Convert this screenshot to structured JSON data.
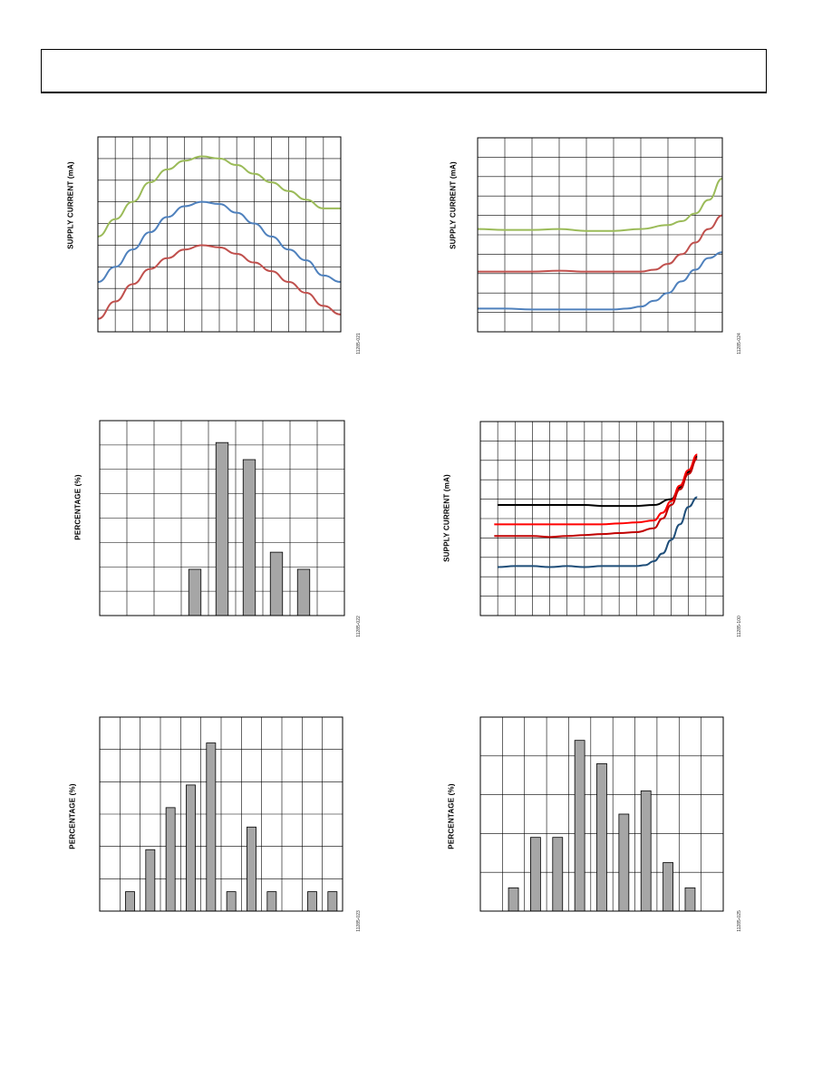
{
  "page": {
    "header_text": ""
  },
  "chart_data": [
    {
      "id": "c1",
      "type": "line",
      "ylabel": "SUPPLY CURRENT (mA)",
      "figure_id": "11285-021",
      "grid": true,
      "xlim": [
        0,
        14
      ],
      "ylim": [
        0,
        9
      ],
      "x_divisions": 14,
      "y_divisions": 9,
      "series": [
        {
          "color": "#9bbb59",
          "x": [
            0,
            1,
            2,
            3,
            4,
            5,
            6,
            7,
            8,
            9,
            10,
            11,
            12,
            13,
            14
          ],
          "y": [
            4.4,
            5.2,
            6.0,
            6.9,
            7.5,
            7.9,
            8.1,
            8.0,
            7.7,
            7.3,
            6.9,
            6.5,
            6.1,
            5.7,
            5.7
          ]
        },
        {
          "color": "#4f81bd",
          "x": [
            0,
            1,
            2,
            3,
            4,
            5,
            6,
            7,
            8,
            9,
            10,
            11,
            12,
            13,
            14
          ],
          "y": [
            2.3,
            3.0,
            3.8,
            4.6,
            5.3,
            5.8,
            6.0,
            5.9,
            5.5,
            5.0,
            4.4,
            3.8,
            3.3,
            2.6,
            2.3
          ]
        },
        {
          "color": "#c0504d",
          "x": [
            0,
            1,
            2,
            3,
            4,
            5,
            6,
            7,
            8,
            9,
            10,
            11,
            12,
            13,
            14
          ],
          "y": [
            0.6,
            1.4,
            2.2,
            2.9,
            3.4,
            3.8,
            4.0,
            3.9,
            3.6,
            3.2,
            2.8,
            2.3,
            1.8,
            1.2,
            0.8
          ]
        }
      ]
    },
    {
      "id": "c2",
      "type": "line",
      "ylabel": "SUPPLY CURRENT (mA)",
      "figure_id": "11285-024",
      "grid": true,
      "xlim": [
        0,
        9
      ],
      "ylim": [
        0,
        10
      ],
      "x_divisions": 9,
      "y_divisions": 10,
      "series": [
        {
          "color": "#9bbb59",
          "x": [
            0,
            1,
            2,
            3,
            4,
            5,
            6,
            7,
            7.5,
            8,
            8.5,
            9
          ],
          "y": [
            5.3,
            5.25,
            5.25,
            5.3,
            5.2,
            5.2,
            5.3,
            5.5,
            5.7,
            6.1,
            6.8,
            7.9
          ]
        },
        {
          "color": "#c0504d",
          "x": [
            0,
            1,
            2,
            3,
            4,
            5,
            6,
            6.5,
            7,
            7.5,
            8,
            8.5,
            9
          ],
          "y": [
            3.1,
            3.1,
            3.1,
            3.15,
            3.1,
            3.1,
            3.1,
            3.2,
            3.5,
            4.0,
            4.6,
            5.3,
            6.0
          ]
        },
        {
          "color": "#4f81bd",
          "x": [
            0,
            1,
            2,
            3,
            4,
            5,
            5.5,
            6,
            6.5,
            7,
            7.5,
            8,
            8.5,
            9
          ],
          "y": [
            1.2,
            1.2,
            1.15,
            1.15,
            1.15,
            1.15,
            1.2,
            1.3,
            1.6,
            2.0,
            2.6,
            3.2,
            3.8,
            4.1
          ]
        }
      ]
    },
    {
      "id": "c3",
      "type": "bar",
      "ylabel": "PERCENTAGE (%)",
      "figure_id": "11285-022",
      "grid": true,
      "xlim": [
        0,
        9
      ],
      "ylim": [
        0,
        8
      ],
      "x_divisions": 9,
      "y_divisions": 8,
      "bar_color": "#a6a6a6",
      "bars": [
        {
          "x": 3.5,
          "value": 1.9
        },
        {
          "x": 4.5,
          "value": 7.1
        },
        {
          "x": 5.5,
          "value": 6.4
        },
        {
          "x": 6.5,
          "value": 2.6
        },
        {
          "x": 7.5,
          "value": 1.9
        }
      ]
    },
    {
      "id": "c4",
      "type": "line",
      "ylabel": "SUPPLY CURRENT (mA)",
      "figure_id": "11285-100",
      "grid": true,
      "xlim": [
        0,
        14
      ],
      "ylim": [
        0,
        10
      ],
      "x_divisions": 14,
      "y_divisions": 10,
      "series": [
        {
          "color": "#000000",
          "x": [
            1,
            2,
            3,
            4,
            5,
            6,
            7,
            8,
            9,
            10,
            11,
            11.5,
            12,
            12.5
          ],
          "y": [
            5.7,
            5.7,
            5.7,
            5.7,
            5.7,
            5.7,
            5.65,
            5.65,
            5.65,
            5.7,
            6.0,
            6.6,
            7.4,
            8.2
          ]
        },
        {
          "color": "#ff0000",
          "x": [
            0.8,
            2,
            3,
            4,
            5,
            6,
            7,
            8,
            9,
            10,
            10.5,
            11,
            11.5,
            12,
            12.5
          ],
          "y": [
            4.7,
            4.7,
            4.7,
            4.7,
            4.7,
            4.7,
            4.7,
            4.75,
            4.8,
            4.9,
            5.3,
            5.9,
            6.7,
            7.5,
            8.3
          ]
        },
        {
          "color": "#c00000",
          "x": [
            0.8,
            2,
            3,
            4,
            5,
            6,
            7,
            8,
            9,
            10,
            10.5,
            11,
            11.5,
            12,
            12.5
          ],
          "y": [
            4.1,
            4.1,
            4.1,
            4.05,
            4.1,
            4.15,
            4.2,
            4.25,
            4.3,
            4.5,
            5.0,
            5.7,
            6.5,
            7.3,
            8.1
          ]
        },
        {
          "color": "#1f4e79",
          "x": [
            1,
            2,
            3,
            4,
            5,
            6,
            7,
            8,
            9,
            9.5,
            10,
            10.5,
            11,
            11.5,
            12,
            12.5
          ],
          "y": [
            2.5,
            2.55,
            2.55,
            2.5,
            2.55,
            2.5,
            2.55,
            2.55,
            2.55,
            2.6,
            2.8,
            3.2,
            3.9,
            4.7,
            5.6,
            6.1
          ]
        }
      ]
    },
    {
      "id": "c5",
      "type": "bar",
      "ylabel": "PERCENTAGE (%)",
      "figure_id": "11285-023",
      "grid": true,
      "xlim": [
        0,
        12
      ],
      "ylim": [
        0,
        6
      ],
      "x_divisions": 12,
      "y_divisions": 6,
      "bar_color": "#a6a6a6",
      "bars": [
        {
          "x": 1.5,
          "value": 0.6
        },
        {
          "x": 2.5,
          "value": 1.9
        },
        {
          "x": 3.5,
          "value": 3.2
        },
        {
          "x": 4.5,
          "value": 3.9
        },
        {
          "x": 5.5,
          "value": 5.2
        },
        {
          "x": 6.5,
          "value": 0.6
        },
        {
          "x": 7.5,
          "value": 2.6
        },
        {
          "x": 8.5,
          "value": 0.6
        },
        {
          "x": 10.5,
          "value": 0.6
        },
        {
          "x": 11.5,
          "value": 0.6
        }
      ]
    },
    {
      "id": "c6",
      "type": "bar",
      "ylabel": "PERCENTAGE (%)",
      "figure_id": "11285-025",
      "grid": true,
      "xlim": [
        0,
        11
      ],
      "ylim": [
        0,
        5
      ],
      "x_divisions": 11,
      "y_divisions": 5,
      "bar_color": "#a6a6a6",
      "bars": [
        {
          "x": 1.5,
          "value": 0.6
        },
        {
          "x": 2.5,
          "value": 1.9
        },
        {
          "x": 3.5,
          "value": 1.9
        },
        {
          "x": 4.5,
          "value": 4.4
        },
        {
          "x": 5.5,
          "value": 3.8
        },
        {
          "x": 6.5,
          "value": 2.5
        },
        {
          "x": 7.5,
          "value": 3.1
        },
        {
          "x": 8.5,
          "value": 1.25
        },
        {
          "x": 9.5,
          "value": 0.6
        }
      ]
    }
  ]
}
